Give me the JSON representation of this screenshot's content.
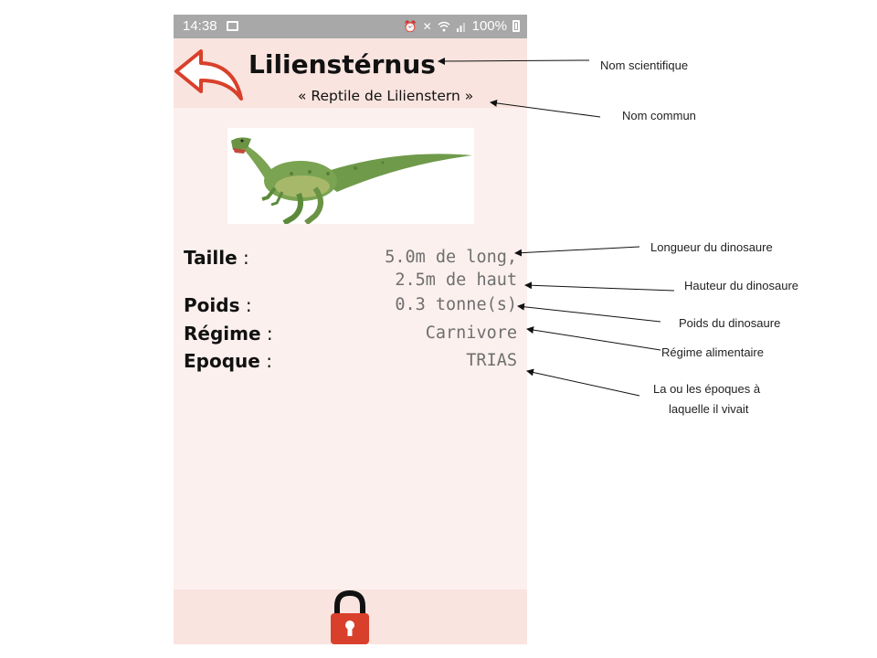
{
  "status_bar": {
    "time": "14:38",
    "battery": "100%",
    "icons": [
      "image-icon",
      "alarm-icon",
      "mute-vibrate-icon",
      "wifi-icon",
      "signal-icon",
      "battery-icon"
    ]
  },
  "header": {
    "scientific_name": "Lilienstérnus",
    "common_name": "« Reptile de Lilienstern »",
    "back_icon": "back-arrow-icon"
  },
  "image": {
    "subject": "dinosaur-illustration"
  },
  "info": {
    "size_label": "Taille",
    "size_value_length": "5.0m de long,",
    "size_value_height": "2.5m de haut",
    "weight_label": "Poids",
    "weight_value": "0.3 tonne(s)",
    "diet_label": "Régime",
    "diet_value": "Carnivore",
    "era_label": "Epoque",
    "era_value": "TRIAS",
    "separator": " :"
  },
  "footer": {
    "lock_icon": "lock-icon"
  },
  "annotations": {
    "scientific_name": "Nom scientifique",
    "common_name": "Nom commun",
    "length": "Longueur du dinosaure",
    "height": "Hauteur du dinosaure",
    "weight": "Poids du dinosaure",
    "diet": "Régime alimentaire",
    "era_line1": "La ou les époques à",
    "era_line2": "laquelle il vivait"
  },
  "colors": {
    "screen_bg": "#fbf0ee",
    "header_bg": "#f9e4df",
    "status_bar_bg": "#a8a8a8",
    "accent_red": "#d9402b",
    "value_gray": "#6f6f6f"
  }
}
